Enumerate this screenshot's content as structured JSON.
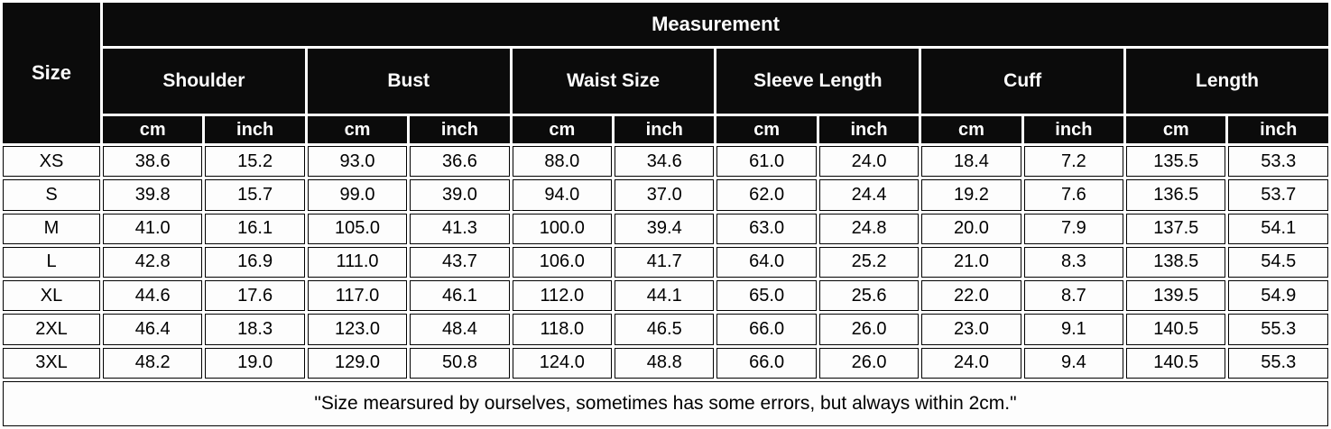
{
  "table": {
    "title": "Measurement",
    "size_header": "Size",
    "groups": [
      "Shoulder",
      "Bust",
      "Waist Size",
      "Sleeve Length",
      "Cuff",
      "Length"
    ],
    "unit_cm": "cm",
    "unit_inch": "inch",
    "rows": [
      {
        "size": "XS",
        "values": [
          "38.6",
          "15.2",
          "93.0",
          "36.6",
          "88.0",
          "34.6",
          "61.0",
          "24.0",
          "18.4",
          "7.2",
          "135.5",
          "53.3"
        ]
      },
      {
        "size": "S",
        "values": [
          "39.8",
          "15.7",
          "99.0",
          "39.0",
          "94.0",
          "37.0",
          "62.0",
          "24.4",
          "19.2",
          "7.6",
          "136.5",
          "53.7"
        ]
      },
      {
        "size": "M",
        "values": [
          "41.0",
          "16.1",
          "105.0",
          "41.3",
          "100.0",
          "39.4",
          "63.0",
          "24.8",
          "20.0",
          "7.9",
          "137.5",
          "54.1"
        ]
      },
      {
        "size": "L",
        "values": [
          "42.8",
          "16.9",
          "111.0",
          "43.7",
          "106.0",
          "41.7",
          "64.0",
          "25.2",
          "21.0",
          "8.3",
          "138.5",
          "54.5"
        ]
      },
      {
        "size": "XL",
        "values": [
          "44.6",
          "17.6",
          "117.0",
          "46.1",
          "112.0",
          "44.1",
          "65.0",
          "25.6",
          "22.0",
          "8.7",
          "139.5",
          "54.9"
        ]
      },
      {
        "size": "2XL",
        "values": [
          "46.4",
          "18.3",
          "123.0",
          "48.4",
          "118.0",
          "46.5",
          "66.0",
          "26.0",
          "23.0",
          "9.1",
          "140.5",
          "55.3"
        ]
      },
      {
        "size": "3XL",
        "values": [
          "48.2",
          "19.0",
          "129.0",
          "50.8",
          "124.0",
          "48.8",
          "66.0",
          "26.0",
          "24.0",
          "9.4",
          "140.5",
          "55.3"
        ]
      }
    ],
    "footnote": "\"Size mearsured by ourselves, sometimes has some errors, but always within 2cm.\"",
    "colors": {
      "header_background": "#0b0b0b",
      "header_text": "#fefefe",
      "cell_background": "#fdfdfd",
      "border": "#000000"
    }
  }
}
